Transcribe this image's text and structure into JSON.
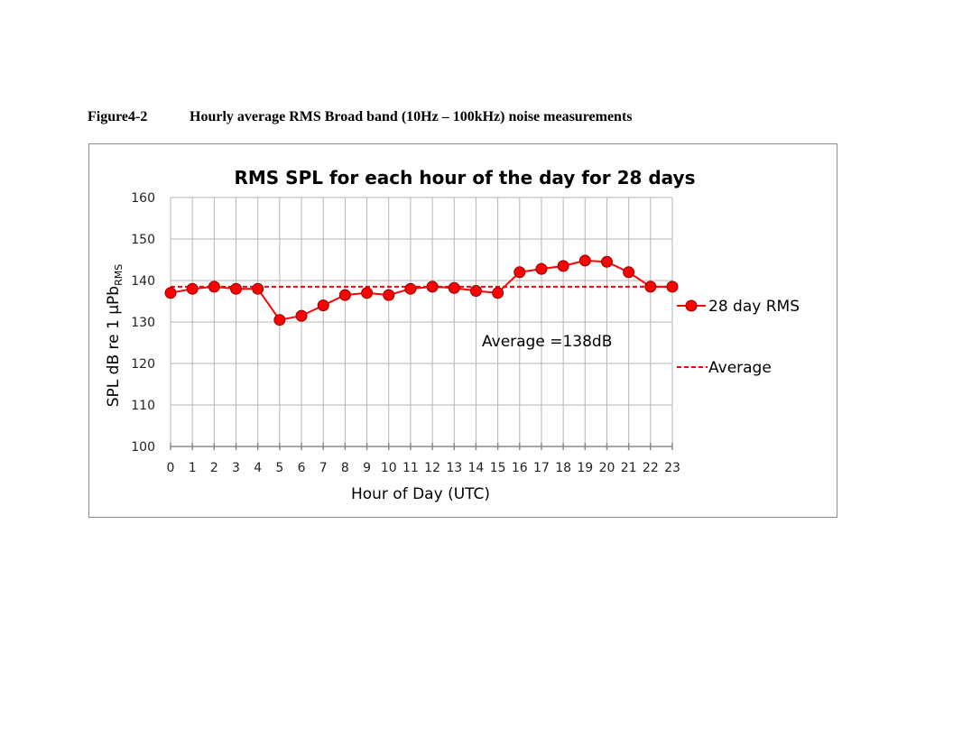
{
  "figure": {
    "number": "Figure4-2",
    "caption": "Hourly average RMS Broad band (10Hz – 100kHz) noise measurements"
  },
  "chart_data": {
    "type": "line",
    "title": "RMS SPL for each hour of the day for 28 days",
    "xlabel": "Hour of Day (UTC)",
    "ylabel_main": "SPL  dB re 1 µPb",
    "ylabel_sub": "RMS",
    "x": [
      0,
      1,
      2,
      3,
      4,
      5,
      6,
      7,
      8,
      9,
      10,
      11,
      12,
      13,
      14,
      15,
      16,
      17,
      18,
      19,
      20,
      21,
      22,
      23
    ],
    "yticks": [
      100,
      110,
      120,
      130,
      140,
      150,
      160
    ],
    "ylim": [
      100,
      160
    ],
    "grid": true,
    "legend_position": "right",
    "series": [
      {
        "name": "28 day RMS",
        "color": "#ff0000",
        "values": [
          137,
          138,
          138.5,
          138,
          138,
          130.5,
          131.5,
          134,
          136.5,
          137,
          136.5,
          138,
          138.5,
          138.2,
          137.5,
          137,
          142,
          142.8,
          143.5,
          144.8,
          144.5,
          142,
          138.5,
          138.5
        ]
      },
      {
        "name": "Average",
        "color": "#ff0000",
        "style": "dashed",
        "values": [
          138.5,
          138.5,
          138.5,
          138.5,
          138.5,
          138.5,
          138.5,
          138.5,
          138.5,
          138.5,
          138.5,
          138.5,
          138.5,
          138.5,
          138.5,
          138.5,
          138.5,
          138.5,
          138.5,
          138.5,
          138.5,
          138.5,
          138.5,
          138.5
        ]
      }
    ],
    "annotation": "Average =138dB"
  }
}
